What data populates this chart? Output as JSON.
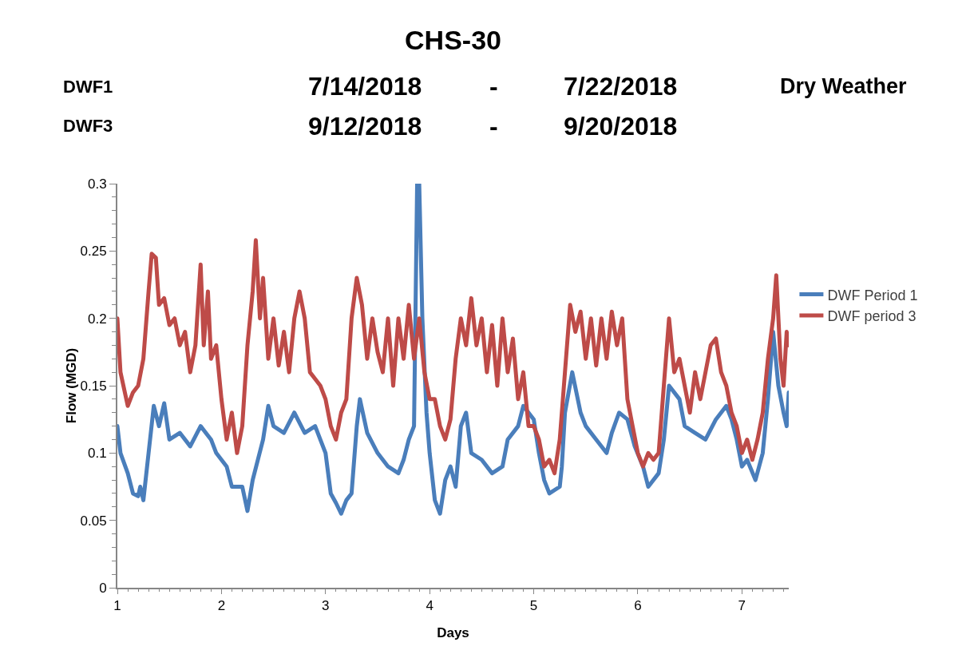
{
  "chart_data": {
    "type": "line",
    "title": "CHS-30",
    "annotations": [
      "DWF1",
      "7/14/2018",
      "-",
      "7/22/2018",
      "Dry Weather",
      "DWF3",
      "9/12/2018",
      "-",
      "9/20/2018"
    ],
    "xlabel": "Days",
    "ylabel": "Flow (MGD)",
    "xlim": [
      1,
      7.45
    ],
    "xticks": [
      1,
      2,
      3,
      4,
      5,
      6,
      7
    ],
    "ylim": [
      0,
      0.3
    ],
    "yticks": [
      0,
      0.05,
      0.1,
      0.15,
      0.2,
      0.25,
      0.3
    ],
    "grid": false,
    "legend": "right",
    "marker": "none",
    "line_style": "solid",
    "series": [
      {
        "name": "DWF Period 1",
        "color": "#4a7ebb",
        "x": [
          1,
          1.03,
          1.1,
          1.15,
          1.2,
          1.22,
          1.25,
          1.3,
          1.35,
          1.4,
          1.45,
          1.5,
          1.6,
          1.7,
          1.8,
          1.9,
          1.95,
          2.05,
          2.1,
          2.2,
          2.25,
          2.3,
          2.4,
          2.45,
          2.5,
          2.6,
          2.7,
          2.8,
          2.9,
          3.0,
          3.05,
          3.1,
          3.15,
          3.2,
          3.25,
          3.3,
          3.33,
          3.4,
          3.5,
          3.6,
          3.7,
          3.75,
          3.8,
          3.85,
          3.88,
          3.9,
          3.93,
          3.97,
          4.0,
          4.05,
          4.1,
          4.15,
          4.2,
          4.25,
          4.3,
          4.35,
          4.4,
          4.5,
          4.6,
          4.7,
          4.75,
          4.85,
          4.9,
          5.0,
          5.05,
          5.1,
          5.15,
          5.25,
          5.27,
          5.3,
          5.37,
          5.45,
          5.5,
          5.6,
          5.7,
          5.75,
          5.82,
          5.9,
          5.97,
          6.05,
          6.1,
          6.2,
          6.25,
          6.3,
          6.4,
          6.45,
          6.55,
          6.65,
          6.75,
          6.85,
          6.9,
          6.95,
          7.0,
          7.05,
          7.13,
          7.2,
          7.25,
          7.3,
          7.35,
          7.4,
          7.43,
          7.45
        ],
        "values": [
          0.12,
          0.1,
          0.085,
          0.07,
          0.068,
          0.075,
          0.065,
          0.1,
          0.135,
          0.12,
          0.137,
          0.11,
          0.115,
          0.105,
          0.12,
          0.11,
          0.1,
          0.09,
          0.075,
          0.075,
          0.057,
          0.08,
          0.11,
          0.135,
          0.12,
          0.115,
          0.13,
          0.115,
          0.12,
          0.1,
          0.07,
          0.063,
          0.055,
          0.065,
          0.07,
          0.12,
          0.14,
          0.115,
          0.1,
          0.09,
          0.085,
          0.095,
          0.11,
          0.12,
          0.3,
          0.3,
          0.2,
          0.13,
          0.1,
          0.065,
          0.055,
          0.08,
          0.09,
          0.075,
          0.12,
          0.13,
          0.1,
          0.095,
          0.085,
          0.09,
          0.11,
          0.12,
          0.135,
          0.125,
          0.1,
          0.08,
          0.07,
          0.075,
          0.09,
          0.13,
          0.16,
          0.13,
          0.12,
          0.11,
          0.1,
          0.115,
          0.13,
          0.125,
          0.105,
          0.09,
          0.075,
          0.085,
          0.11,
          0.15,
          0.14,
          0.12,
          0.115,
          0.11,
          0.125,
          0.135,
          0.125,
          0.11,
          0.09,
          0.095,
          0.08,
          0.1,
          0.14,
          0.19,
          0.15,
          0.13,
          0.12,
          0.145
        ]
      },
      {
        "name": "DWF period 3",
        "color": "#be4b48",
        "x": [
          1,
          1.03,
          1.1,
          1.15,
          1.2,
          1.25,
          1.3,
          1.33,
          1.37,
          1.4,
          1.45,
          1.5,
          1.55,
          1.6,
          1.65,
          1.7,
          1.75,
          1.8,
          1.83,
          1.87,
          1.9,
          1.95,
          2.0,
          2.05,
          2.1,
          2.15,
          2.2,
          2.25,
          2.3,
          2.33,
          2.37,
          2.4,
          2.45,
          2.5,
          2.55,
          2.6,
          2.65,
          2.7,
          2.75,
          2.8,
          2.85,
          2.9,
          2.95,
          3.0,
          3.05,
          3.1,
          3.15,
          3.2,
          3.25,
          3.3,
          3.35,
          3.4,
          3.45,
          3.5,
          3.55,
          3.6,
          3.65,
          3.7,
          3.75,
          3.8,
          3.85,
          3.9,
          3.95,
          4.0,
          4.05,
          4.1,
          4.15,
          4.2,
          4.25,
          4.3,
          4.35,
          4.4,
          4.45,
          4.5,
          4.55,
          4.6,
          4.65,
          4.7,
          4.75,
          4.8,
          4.85,
          4.9,
          4.95,
          5.0,
          5.05,
          5.1,
          5.15,
          5.2,
          5.25,
          5.3,
          5.35,
          5.4,
          5.45,
          5.5,
          5.55,
          5.6,
          5.65,
          5.7,
          5.75,
          5.8,
          5.85,
          5.9,
          5.95,
          6.0,
          6.05,
          6.1,
          6.15,
          6.2,
          6.25,
          6.3,
          6.35,
          6.4,
          6.45,
          6.5,
          6.55,
          6.6,
          6.7,
          6.75,
          6.8,
          6.85,
          6.9,
          6.95,
          7.0,
          7.05,
          7.1,
          7.15,
          7.2,
          7.25,
          7.3,
          7.33,
          7.37,
          7.4,
          7.43,
          7.45
        ],
        "values": [
          0.2,
          0.16,
          0.135,
          0.145,
          0.15,
          0.17,
          0.22,
          0.248,
          0.245,
          0.21,
          0.215,
          0.195,
          0.2,
          0.18,
          0.19,
          0.16,
          0.18,
          0.24,
          0.18,
          0.22,
          0.17,
          0.18,
          0.14,
          0.11,
          0.13,
          0.1,
          0.12,
          0.18,
          0.22,
          0.258,
          0.2,
          0.23,
          0.17,
          0.2,
          0.165,
          0.19,
          0.16,
          0.2,
          0.22,
          0.2,
          0.16,
          0.155,
          0.15,
          0.14,
          0.12,
          0.11,
          0.13,
          0.14,
          0.2,
          0.23,
          0.21,
          0.17,
          0.2,
          0.175,
          0.16,
          0.2,
          0.15,
          0.2,
          0.17,
          0.21,
          0.17,
          0.2,
          0.16,
          0.14,
          0.14,
          0.12,
          0.11,
          0.125,
          0.17,
          0.2,
          0.18,
          0.215,
          0.18,
          0.2,
          0.16,
          0.195,
          0.15,
          0.2,
          0.16,
          0.185,
          0.14,
          0.16,
          0.12,
          0.12,
          0.11,
          0.09,
          0.095,
          0.085,
          0.11,
          0.16,
          0.21,
          0.19,
          0.205,
          0.17,
          0.2,
          0.165,
          0.2,
          0.17,
          0.205,
          0.18,
          0.2,
          0.14,
          0.12,
          0.1,
          0.09,
          0.1,
          0.095,
          0.1,
          0.15,
          0.2,
          0.16,
          0.17,
          0.15,
          0.13,
          0.16,
          0.14,
          0.18,
          0.185,
          0.16,
          0.15,
          0.13,
          0.12,
          0.1,
          0.11,
          0.095,
          0.11,
          0.13,
          0.17,
          0.2,
          0.232,
          0.17,
          0.15,
          0.19,
          0.18
        ]
      }
    ]
  }
}
